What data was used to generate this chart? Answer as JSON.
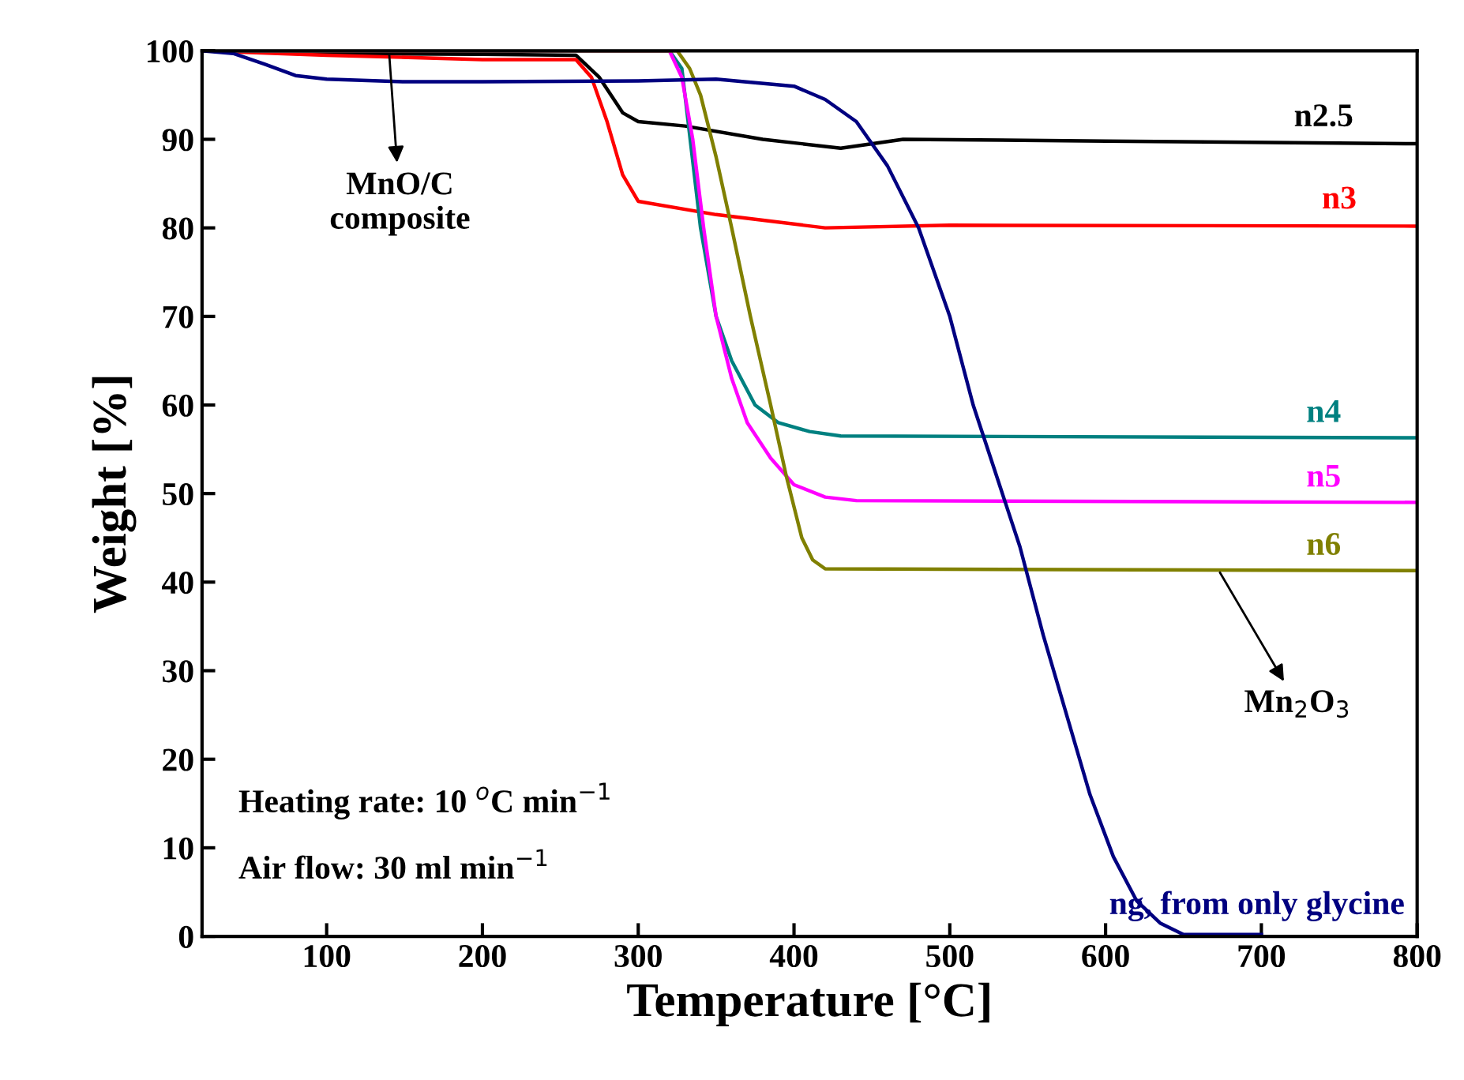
{
  "chart_data": {
    "type": "line",
    "xlabel": "Temperature [°C]",
    "ylabel": "Weight [%]",
    "xlim": [
      20,
      800
    ],
    "ylim": [
      0,
      100
    ],
    "xticks": [
      100,
      200,
      300,
      400,
      500,
      600,
      700,
      800
    ],
    "yticks": [
      0,
      10,
      20,
      30,
      40,
      50,
      60,
      70,
      80,
      90,
      100
    ],
    "grid": false,
    "legend": false,
    "marker": "none",
    "line_style": "solid",
    "series": [
      {
        "name": "n2.5",
        "color": "#000000",
        "x": [
          20,
          100,
          200,
          260,
          275,
          290,
          300,
          330,
          380,
          430,
          470,
          600,
          800
        ],
        "values": [
          100,
          99.7,
          99.6,
          99.5,
          97,
          93,
          92,
          91.5,
          90,
          89,
          90,
          89.8,
          89.5
        ]
      },
      {
        "name": "n3",
        "color": "#ff0000",
        "x": [
          20,
          100,
          200,
          260,
          270,
          280,
          290,
          300,
          350,
          420,
          500,
          800
        ],
        "values": [
          100,
          99.5,
          99,
          99,
          97,
          92,
          86,
          83,
          81.5,
          80,
          80.3,
          80.2
        ]
      },
      {
        "name": "n4",
        "color": "#008080",
        "x": [
          20,
          320,
          328,
          340,
          350,
          360,
          375,
          390,
          410,
          430,
          800
        ],
        "values": [
          100,
          100,
          98,
          80,
          70,
          65,
          60,
          58,
          57,
          56.5,
          56.3
        ]
      },
      {
        "name": "n5",
        "color": "#ff00ff",
        "x": [
          20,
          320,
          328,
          335,
          342,
          350,
          360,
          370,
          385,
          400,
          420,
          440,
          800
        ],
        "values": [
          100,
          100,
          97,
          90,
          80,
          70,
          63,
          58,
          54,
          51,
          49.6,
          49.2,
          49
        ]
      },
      {
        "name": "n6",
        "color": "#808000",
        "x": [
          20,
          325,
          333,
          340,
          350,
          360,
          372,
          385,
          395,
          405,
          412,
          420,
          800
        ],
        "values": [
          100,
          100,
          98,
          95,
          88,
          80,
          70,
          60,
          52,
          45,
          42.5,
          41.5,
          41.3
        ]
      },
      {
        "name": "ng, from only glycine",
        "color": "#000080",
        "x": [
          20,
          40,
          60,
          80,
          100,
          150,
          200,
          300,
          350,
          400,
          420,
          440,
          460,
          480,
          500,
          515,
          530,
          545,
          560,
          575,
          590,
          605,
          620,
          635,
          650,
          700
        ],
        "values": [
          100,
          99.7,
          98.5,
          97.2,
          96.8,
          96.5,
          96.5,
          96.6,
          96.8,
          96,
          94.5,
          92,
          87,
          80,
          70,
          60,
          52,
          44,
          34,
          25,
          16,
          9,
          4,
          1.5,
          0.2,
          0.2
        ]
      }
    ],
    "annotations": [
      {
        "text": "MnO/C\ncomposite",
        "x": 140,
        "y": 100
      },
      {
        "text": "Mn$_{2}$O$_{3}$",
        "x": 672,
        "y": 41.5
      },
      "Heating rate: 10 $^{o}$C min$^{−1}$",
      "Air flow: 30 ml min$^{−1}$"
    ]
  }
}
